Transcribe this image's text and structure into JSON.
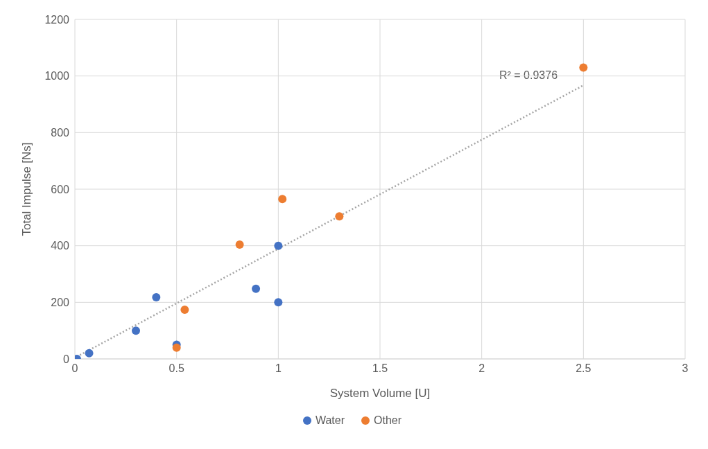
{
  "chart_data": {
    "type": "scatter",
    "xlabel": "System Volume [U]",
    "ylabel": "Total Impulse [Ns]",
    "xlim": [
      0,
      3
    ],
    "xticks": [
      0,
      0.5,
      1,
      1.5,
      2,
      2.5,
      3
    ],
    "ylim": [
      0,
      1200
    ],
    "yticks": [
      0,
      200,
      400,
      600,
      800,
      1000,
      1200
    ],
    "grid": true,
    "legend": "bottom",
    "marker": "circle",
    "series": [
      {
        "name": "Water",
        "color": "#4472c4",
        "x": [
          0.01,
          0.07,
          0.3,
          0.4,
          0.5,
          0.89,
          1.0,
          1.0
        ],
        "values": [
          0,
          20,
          100,
          218,
          50,
          248,
          400,
          200
        ]
      },
      {
        "name": "Other",
        "color": "#ed7d31",
        "x": [
          0.5,
          0.54,
          0.81,
          1.02,
          1.3,
          2.5
        ],
        "values": [
          40,
          174,
          404,
          565,
          504,
          1030
        ]
      },
      {
        "type": "line",
        "marker": "none",
        "line_style": "dotted",
        "color": "#a5a5a5",
        "x": [
          0.01,
          2.5
        ],
        "values": [
          8,
          967
        ]
      }
    ],
    "annotations": [
      "R² = 0.9376"
    ]
  }
}
